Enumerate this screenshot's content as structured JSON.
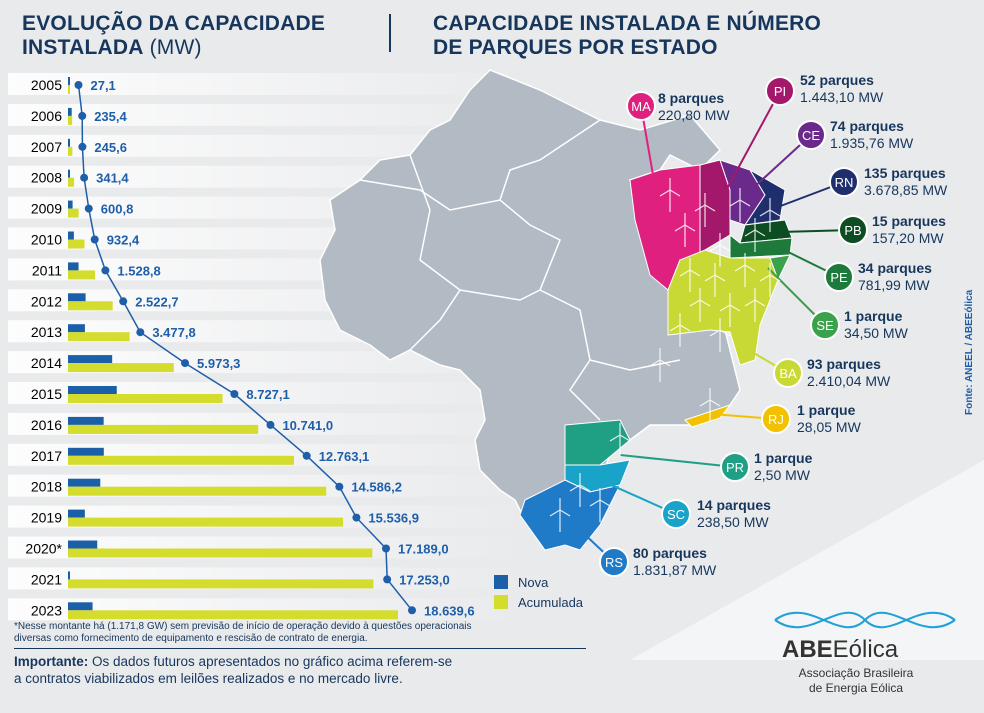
{
  "left_title": {
    "line1": "EVOLUÇÃO DA CAPACIDADE",
    "line2_bold": "INSTALADA",
    "line2_light": " (MW)"
  },
  "right_title": {
    "line1": "CAPACIDADE INSTALADA E NÚMERO",
    "line2": "DE PARQUES POR ESTADO"
  },
  "colors": {
    "nova": "#1a5fa8",
    "acumulada": "#d4dc2d",
    "line": "#1f5ea8",
    "title": "#16365c"
  },
  "chart_data": {
    "type": "bar",
    "title": "EVOLUÇÃO DA CAPACIDADE INSTALADA (MW)",
    "categories": [
      "2005",
      "2006",
      "2007",
      "2008",
      "2009",
      "2010",
      "2011",
      "2012",
      "2013",
      "2014",
      "2015",
      "2016",
      "2017",
      "2018",
      "2019",
      "2020*",
      "2021",
      "2023"
    ],
    "series": [
      {
        "name": "Nova",
        "values": [
          27.1,
          208.3,
          10.2,
          95.8,
          259.4,
          331.6,
          596.4,
          993.9,
          955.1,
          2495.5,
          2753.8,
          2013.9,
          2022.1,
          1823.1,
          950.7,
          1652.1,
          64.0,
          1386.6
        ]
      },
      {
        "name": "Acumulada",
        "values": [
          27.1,
          235.4,
          245.6,
          341.4,
          600.8,
          932.4,
          1528.8,
          2522.7,
          3477.8,
          5973.3,
          8727.1,
          10741.0,
          12763.1,
          14586.2,
          15536.9,
          17189.0,
          17253.0,
          18639.6
        ]
      }
    ],
    "point_labels": [
      "27,1",
      "235,4",
      "245,6",
      "341,4",
      "600,8",
      "932,4",
      "1.528,8",
      "2.522,7",
      "3.477,8",
      "5.973,3",
      "8.727,1",
      "10.741,0",
      "12.763,1",
      "14.586,2",
      "15.536,9",
      "17.189,0",
      "17.253,0",
      "18.639,6"
    ],
    "legend": [
      "Nova",
      "Acumulada"
    ],
    "legend_position": "bottom-right",
    "grid": false
  },
  "states": [
    {
      "code": "MA",
      "parks": "8 parques",
      "mw": "220,80 MW",
      "color": "#e0207f"
    },
    {
      "code": "PI",
      "parks": "52 parques",
      "mw": "1.443,10 MW",
      "color": "#a3186a"
    },
    {
      "code": "CE",
      "parks": "74 parques",
      "mw": "1.935,76 MW",
      "color": "#6a2a8c"
    },
    {
      "code": "RN",
      "parks": "135 parques",
      "mw": "3.678,85 MW",
      "color": "#1f2f6e"
    },
    {
      "code": "PB",
      "parks": "15 parques",
      "mw": "157,20 MW",
      "color": "#0d4d22"
    },
    {
      "code": "PE",
      "parks": "34 parques",
      "mw": "781,99 MW",
      "color": "#1d7a3a"
    },
    {
      "code": "SE",
      "parks": "1 parque",
      "mw": "34,50 MW",
      "color": "#3aa24a"
    },
    {
      "code": "BA",
      "parks": "93 parques",
      "mw": "2.410,04 MW",
      "color": "#c8d834"
    },
    {
      "code": "RJ",
      "parks": "1 parque",
      "mw": "28,05 MW",
      "color": "#f2c200"
    },
    {
      "code": "PR",
      "parks": "1 parque",
      "mw": "2,50 MW",
      "color": "#1fa085"
    },
    {
      "code": "SC",
      "parks": "14 parques",
      "mw": "238,50 MW",
      "color": "#1aa3c8"
    },
    {
      "code": "RS",
      "parks": "80 parques",
      "mw": "1.831,87 MW",
      "color": "#1f7ac8"
    }
  ],
  "note": {
    "line1": "*Nesse montante há (1.171,8 GW) sem previsão de início de operação devido à questões operacionais",
    "line2": "diversas como fornecimento de equipamento e rescisão de contrato de energia."
  },
  "important": {
    "label": "Importante:",
    "line1": " Os dados futuros apresentados no gráfico acima referem-se",
    "line2": "a contratos viabilizados em leilões realizados e no mercado livre."
  },
  "source": "Fonte: ANEEL / ABEEólica",
  "logo": {
    "abbr": "ABE",
    "word": "Eólica",
    "line1": "Associação Brasileira",
    "line2": "de Energia Eólica"
  }
}
